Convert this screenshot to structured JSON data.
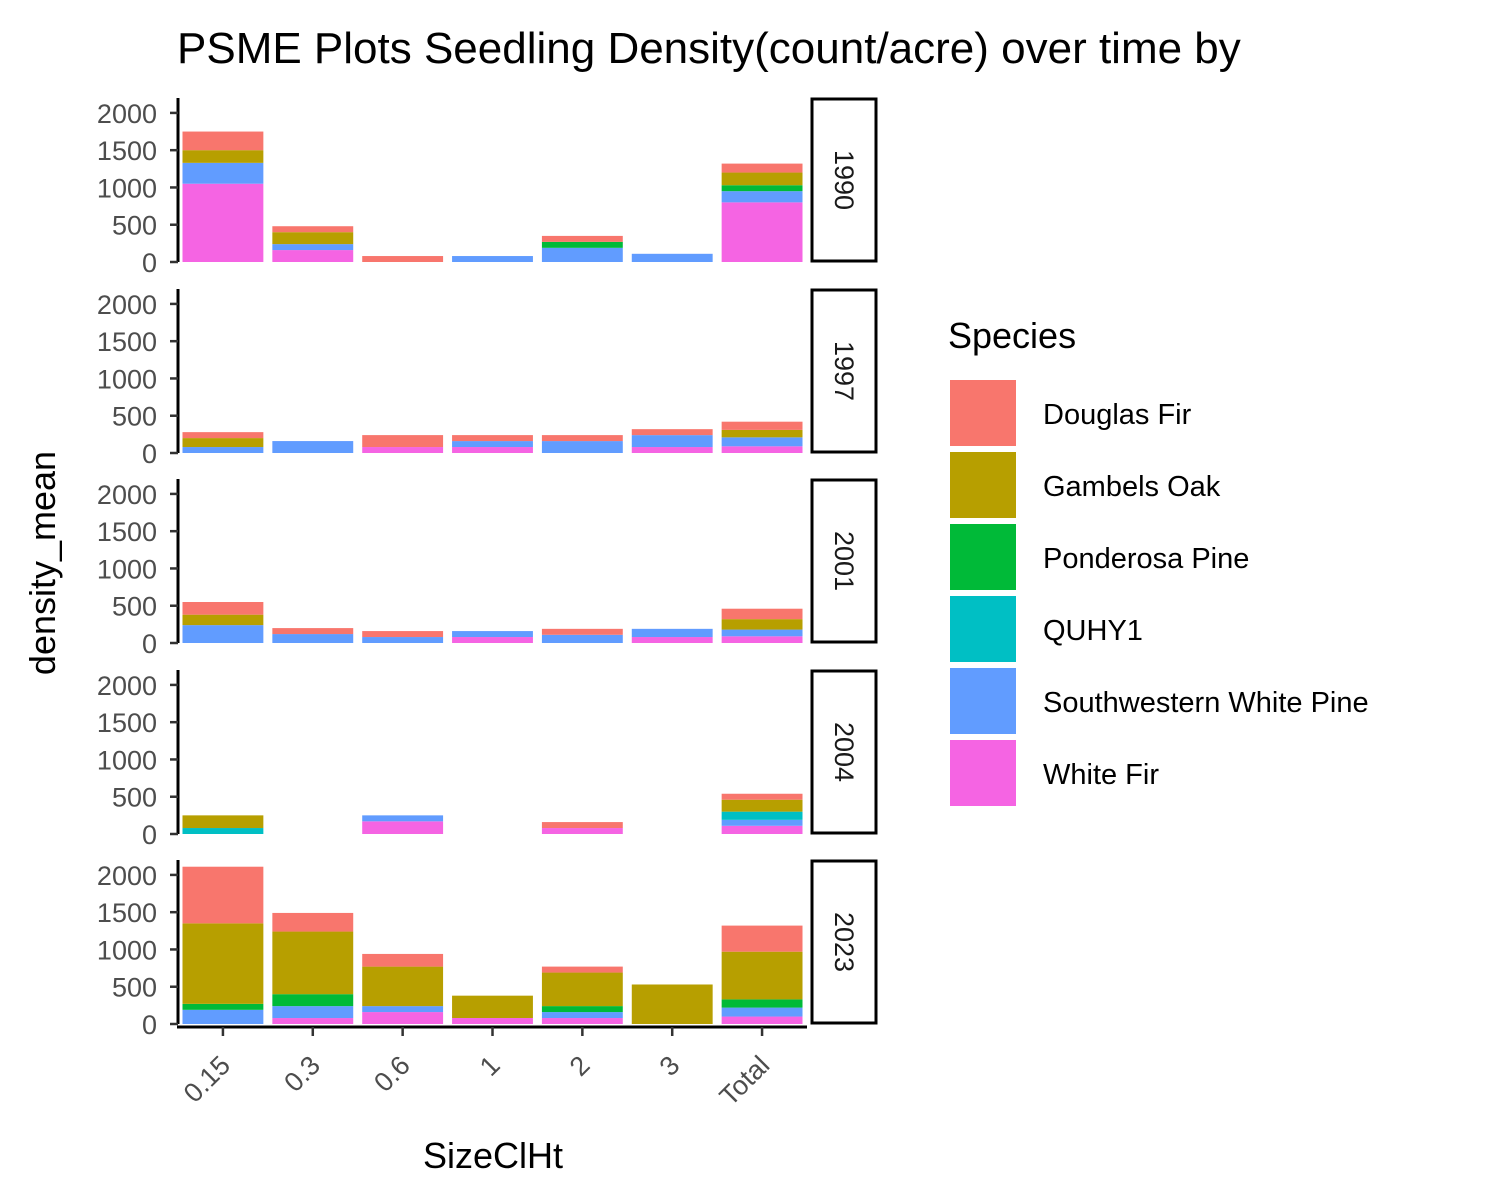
{
  "chart_data": {
    "type": "bar",
    "stacked": true,
    "faceted_by": "year",
    "title": "PSME Plots Seedling Density(count/acre) over time by",
    "xlabel": "SizeClHt",
    "ylabel": "density_mean",
    "ylim": [
      0,
      2200
    ],
    "yticks": [
      0,
      500,
      1000,
      1500,
      2000
    ],
    "categories": [
      "0.15",
      "0.3",
      "0.6",
      "1",
      "2",
      "3",
      "Total"
    ],
    "legend": {
      "title": "Species",
      "position": "right",
      "entries": [
        {
          "name": "Douglas Fir",
          "color": "#F8766D"
        },
        {
          "name": "Gambels Oak",
          "color": "#B79F00"
        },
        {
          "name": "Ponderosa Pine",
          "color": "#00BA38"
        },
        {
          "name": "QUHY1",
          "color": "#00BFC4"
        },
        {
          "name": "Southwestern White Pine",
          "color": "#619CFF"
        },
        {
          "name": "White Fir",
          "color": "#F564E3"
        }
      ]
    },
    "stack_order_bottom_to_top": [
      "White Fir",
      "Southwestern White Pine",
      "QUHY1",
      "Ponderosa Pine",
      "Gambels Oak",
      "Douglas Fir"
    ],
    "facets": [
      {
        "year": "1990",
        "series": [
          {
            "name": "Douglas Fir",
            "values": [
              250,
              80,
              80,
              0,
              80,
              0,
              120
            ]
          },
          {
            "name": "Gambels Oak",
            "values": [
              170,
              160,
              0,
              0,
              0,
              0,
              170
            ]
          },
          {
            "name": "Ponderosa Pine",
            "values": [
              0,
              0,
              0,
              0,
              80,
              0,
              80
            ]
          },
          {
            "name": "QUHY1",
            "values": [
              0,
              0,
              0,
              0,
              0,
              0,
              0
            ]
          },
          {
            "name": "Southwestern White Pine",
            "values": [
              280,
              80,
              0,
              80,
              190,
              110,
              150
            ]
          },
          {
            "name": "White Fir",
            "values": [
              1050,
              160,
              0,
              0,
              0,
              0,
              800
            ]
          }
        ]
      },
      {
        "year": "1997",
        "series": [
          {
            "name": "Douglas Fir",
            "values": [
              80,
              0,
              160,
              80,
              80,
              80,
              110
            ]
          },
          {
            "name": "Gambels Oak",
            "values": [
              120,
              0,
              0,
              0,
              0,
              0,
              100
            ]
          },
          {
            "name": "Ponderosa Pine",
            "values": [
              0,
              0,
              0,
              0,
              0,
              0,
              0
            ]
          },
          {
            "name": "QUHY1",
            "values": [
              0,
              0,
              0,
              0,
              0,
              0,
              0
            ]
          },
          {
            "name": "Southwestern White Pine",
            "values": [
              80,
              160,
              0,
              80,
              160,
              160,
              120
            ]
          },
          {
            "name": "White Fir",
            "values": [
              0,
              0,
              80,
              80,
              0,
              80,
              90
            ]
          }
        ]
      },
      {
        "year": "2001",
        "series": [
          {
            "name": "Douglas Fir",
            "values": [
              170,
              80,
              80,
              0,
              80,
              0,
              140
            ]
          },
          {
            "name": "Gambels Oak",
            "values": [
              140,
              0,
              0,
              0,
              0,
              0,
              140
            ]
          },
          {
            "name": "Ponderosa Pine",
            "values": [
              0,
              0,
              0,
              0,
              0,
              0,
              0
            ]
          },
          {
            "name": "QUHY1",
            "values": [
              0,
              0,
              0,
              0,
              0,
              0,
              0
            ]
          },
          {
            "name": "Southwestern White Pine",
            "values": [
              240,
              120,
              80,
              80,
              110,
              110,
              90
            ]
          },
          {
            "name": "White Fir",
            "values": [
              0,
              0,
              0,
              80,
              0,
              80,
              90
            ]
          }
        ]
      },
      {
        "year": "2004",
        "series": [
          {
            "name": "Douglas Fir",
            "values": [
              0,
              0,
              0,
              0,
              80,
              0,
              80
            ]
          },
          {
            "name": "Gambels Oak",
            "values": [
              170,
              0,
              0,
              0,
              0,
              0,
              160
            ]
          },
          {
            "name": "Ponderosa Pine",
            "values": [
              0,
              0,
              0,
              0,
              0,
              0,
              0
            ]
          },
          {
            "name": "QUHY1",
            "values": [
              80,
              0,
              0,
              0,
              0,
              0,
              110
            ]
          },
          {
            "name": "Southwestern White Pine",
            "values": [
              0,
              0,
              80,
              0,
              0,
              0,
              80
            ]
          },
          {
            "name": "White Fir",
            "values": [
              0,
              0,
              170,
              0,
              80,
              0,
              110
            ]
          }
        ]
      },
      {
        "year": "2023",
        "series": [
          {
            "name": "Douglas Fir",
            "values": [
              760,
              250,
              170,
              0,
              80,
              0,
              350
            ]
          },
          {
            "name": "Gambels Oak",
            "values": [
              1080,
              840,
              530,
              300,
              450,
              530,
              640
            ]
          },
          {
            "name": "Ponderosa Pine",
            "values": [
              80,
              160,
              0,
              0,
              80,
              0,
              110
            ]
          },
          {
            "name": "QUHY1",
            "values": [
              0,
              0,
              0,
              0,
              0,
              0,
              0
            ]
          },
          {
            "name": "Southwestern White Pine",
            "values": [
              190,
              160,
              80,
              0,
              80,
              0,
              120
            ]
          },
          {
            "name": "White Fir",
            "values": [
              0,
              80,
              160,
              80,
              80,
              0,
              100
            ]
          }
        ]
      }
    ]
  }
}
